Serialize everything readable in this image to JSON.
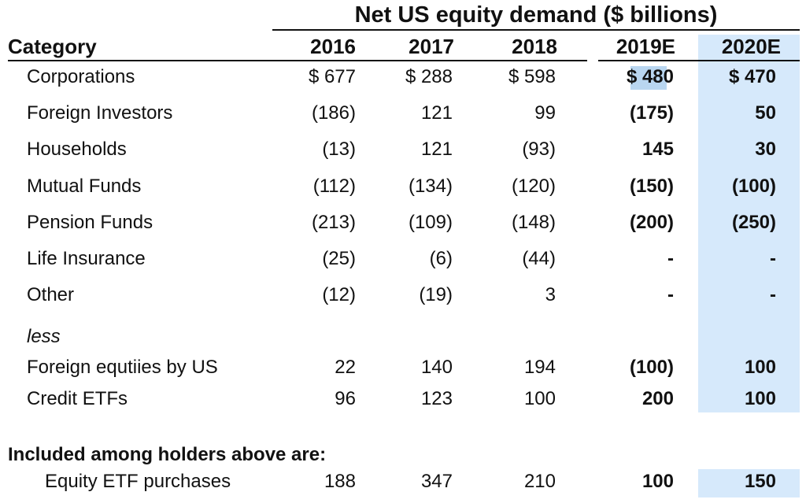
{
  "table": {
    "title": "Net US equity demand ($ billions)",
    "header": {
      "category": "Category",
      "years": [
        "2016",
        "2017",
        "2018",
        "2019E",
        "2020E"
      ]
    },
    "rows": [
      {
        "label": "Corporations",
        "values": [
          "$ 677",
          "$ 288",
          "$ 598",
          "$ 480",
          "$ 470"
        ]
      },
      {
        "label": "Foreign Investors",
        "values": [
          "(186)",
          "121",
          "99",
          "(175)",
          "50"
        ]
      },
      {
        "label": "Households",
        "values": [
          "(13)",
          "121",
          "(93)",
          "145",
          "30"
        ]
      },
      {
        "label": "Mutual Funds",
        "values": [
          "(112)",
          "(134)",
          "(120)",
          "(150)",
          "(100)"
        ]
      },
      {
        "label": "Pension Funds",
        "values": [
          "(213)",
          "(109)",
          "(148)",
          "(200)",
          "(250)"
        ]
      },
      {
        "label": "Life Insurance",
        "values": [
          "(25)",
          "(6)",
          "(44)",
          "-",
          "-"
        ]
      },
      {
        "label": "Other",
        "values": [
          "(12)",
          "(19)",
          "3",
          "-",
          "-"
        ]
      }
    ],
    "less_label": "less",
    "less_rows": [
      {
        "label": "Foreign equtiies by US",
        "values": [
          "22",
          "140",
          "194",
          "(100)",
          "100"
        ]
      },
      {
        "label": "Credit ETFs",
        "values": [
          "96",
          "123",
          "100",
          "200",
          "100"
        ]
      }
    ],
    "included_heading": "Included among holders above are:",
    "included_rows": [
      {
        "label": "Equity ETF purchases",
        "values": [
          "188",
          "347",
          "210",
          "100",
          "150"
        ]
      }
    ]
  }
}
